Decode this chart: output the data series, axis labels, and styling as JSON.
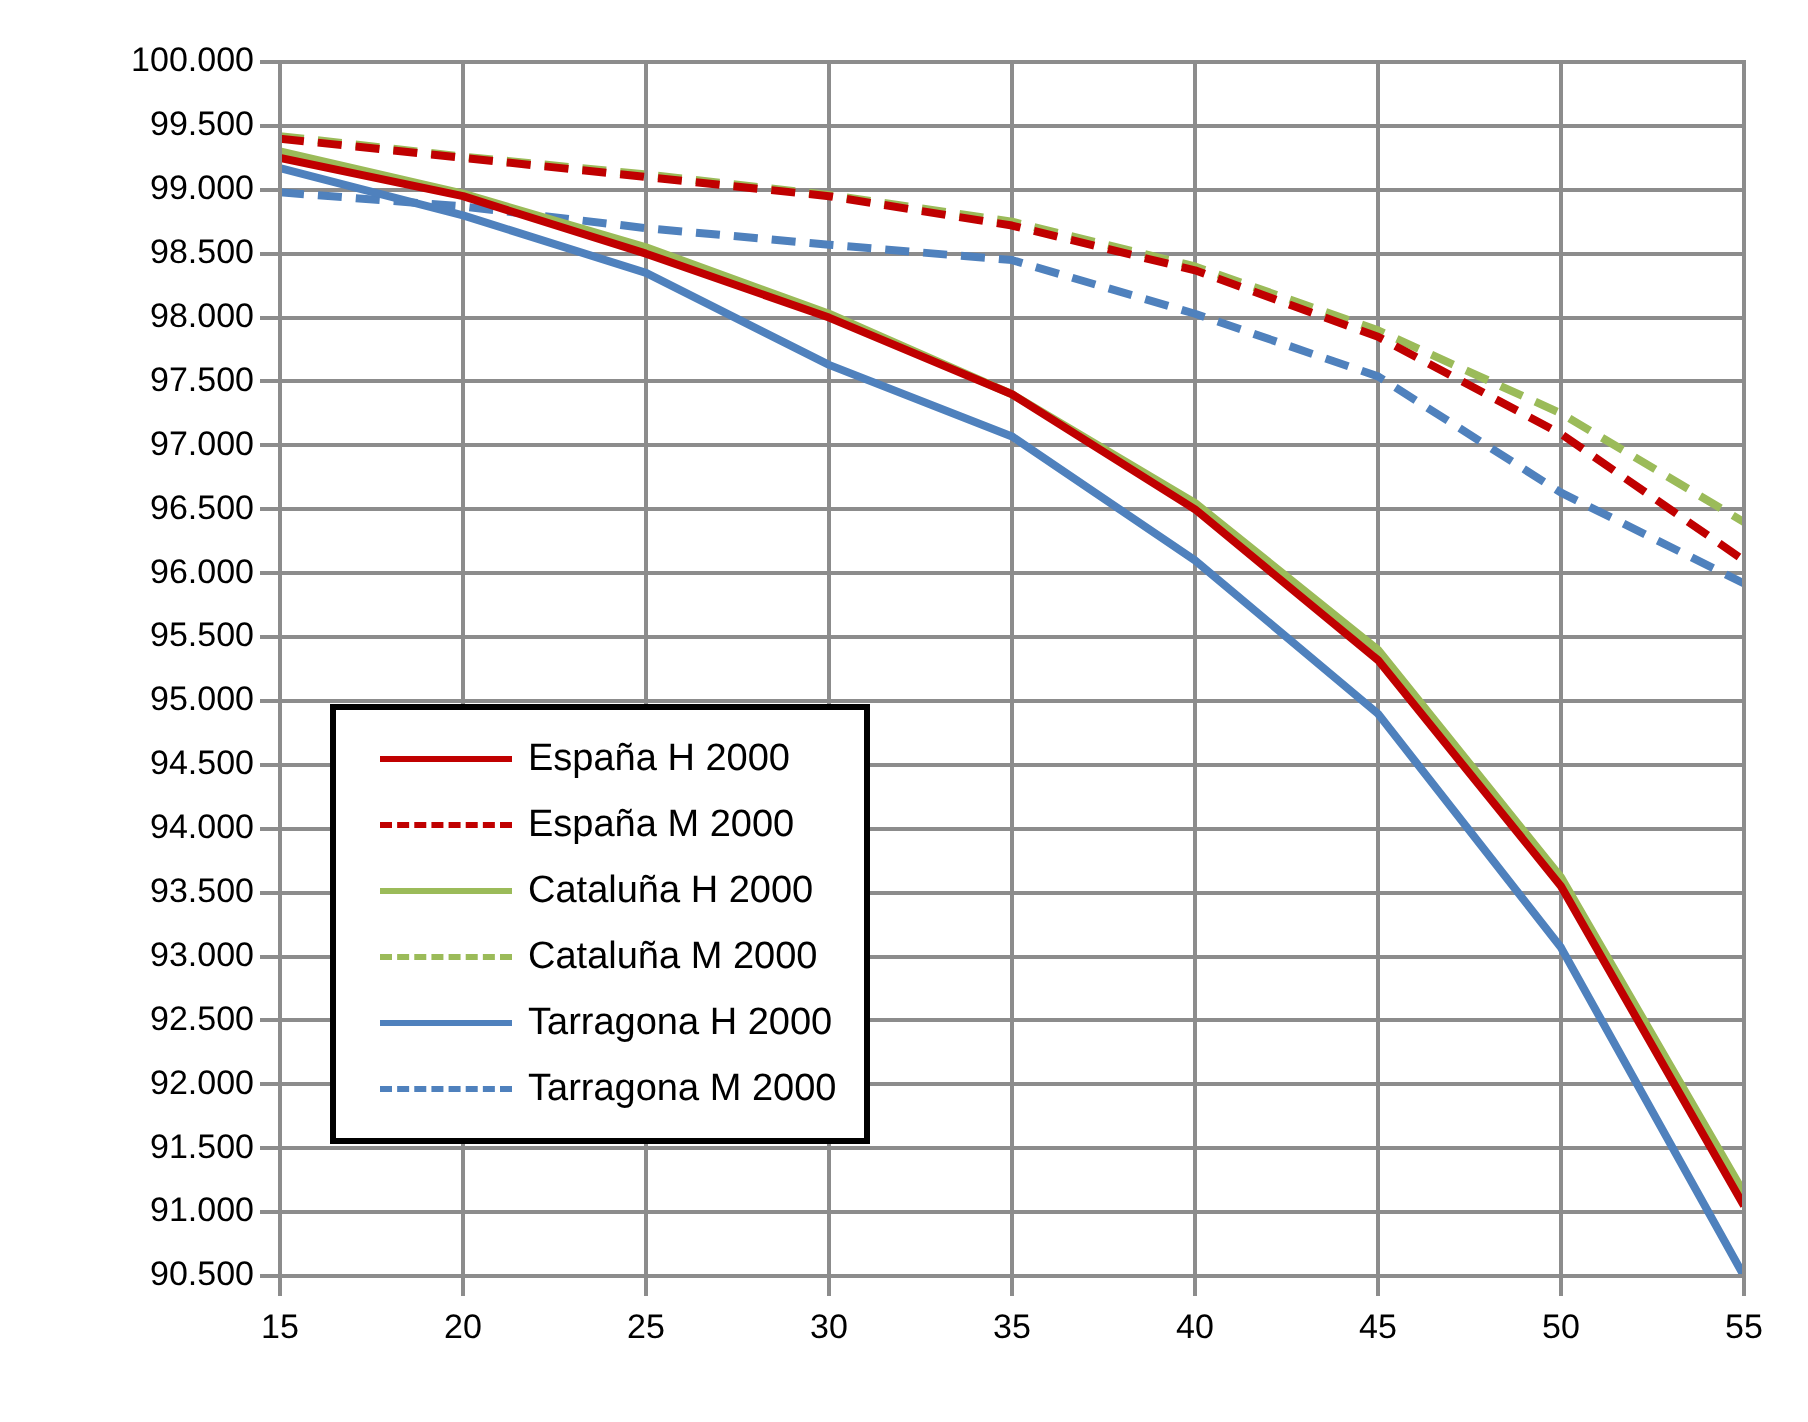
{
  "chart_data": {
    "type": "line",
    "x": [
      15,
      20,
      25,
      30,
      35,
      40,
      45,
      50,
      55
    ],
    "xlim": [
      15,
      55
    ],
    "xticks": [
      15,
      20,
      25,
      30,
      35,
      40,
      45,
      50,
      55
    ],
    "ylim": [
      90.5,
      100
    ],
    "yticks": [
      {
        "value": 90.5,
        "label": "90.500"
      },
      {
        "value": 91,
        "label": "91.000"
      },
      {
        "value": 91.5,
        "label": "91.500"
      },
      {
        "value": 92,
        "label": "92.000"
      },
      {
        "value": 92.5,
        "label": "92.500"
      },
      {
        "value": 93,
        "label": "93.000"
      },
      {
        "value": 93.5,
        "label": "93.500"
      },
      {
        "value": 94,
        "label": "94.000"
      },
      {
        "value": 94.5,
        "label": "94.500"
      },
      {
        "value": 95,
        "label": "95.000"
      },
      {
        "value": 95.5,
        "label": "95.500"
      },
      {
        "value": 96,
        "label": "96.000"
      },
      {
        "value": 96.5,
        "label": "96.500"
      },
      {
        "value": 97,
        "label": "97.000"
      },
      {
        "value": 97.5,
        "label": "97.500"
      },
      {
        "value": 98,
        "label": "98.000"
      },
      {
        "value": 98.5,
        "label": "98.500"
      },
      {
        "value": 99,
        "label": "99.000"
      },
      {
        "value": 99.5,
        "label": "99.500"
      },
      {
        "value": 100,
        "label": "100.000"
      }
    ],
    "grid": true,
    "legend": "left",
    "marker": "none",
    "series": [
      {
        "name": "España H 2000",
        "color": "#c00000",
        "line_style": "solid",
        "values": [
          99.25,
          98.95,
          98.5,
          98.0,
          97.4,
          96.5,
          95.32,
          93.55,
          91.05
        ]
      },
      {
        "name": "España M 2000",
        "color": "#c00000",
        "line_style": "dashed",
        "values": [
          99.4,
          99.25,
          99.1,
          98.95,
          98.72,
          98.37,
          97.85,
          97.09,
          96.1
        ]
      },
      {
        "name": "Cataluña H 2000",
        "color": "#9bbb59",
        "line_style": "solid",
        "values": [
          99.3,
          98.97,
          98.55,
          98.03,
          97.4,
          96.55,
          95.4,
          93.62,
          91.15
        ]
      },
      {
        "name": "Cataluña M 2000",
        "color": "#9bbb59",
        "line_style": "dashed",
        "values": [
          99.42,
          99.26,
          99.12,
          98.96,
          98.75,
          98.4,
          97.9,
          97.25,
          96.4
        ]
      },
      {
        "name": "Tarragona H 2000",
        "color": "#4f81bd",
        "line_style": "solid",
        "values": [
          99.17,
          98.8,
          98.35,
          97.63,
          97.07,
          96.1,
          94.9,
          93.07,
          90.5
        ]
      },
      {
        "name": "Tarragona M 2000",
        "color": "#4f81bd",
        "line_style": "dashed",
        "values": [
          98.98,
          98.87,
          98.7,
          98.57,
          98.45,
          98.03,
          97.54,
          96.63,
          95.92
        ]
      }
    ]
  }
}
